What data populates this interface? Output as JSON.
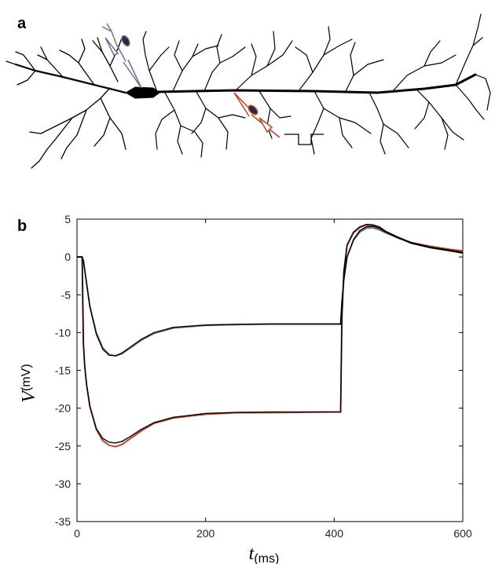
{
  "panels": {
    "a": {
      "letter": "a"
    },
    "b": {
      "letter": "b"
    }
  },
  "chart_data": {
    "type": "line",
    "xlabel": "t",
    "xlabel_unit": "(ms)",
    "ylabel": "V",
    "ylabel_unit": "(mV)",
    "xlim": [
      0,
      600
    ],
    "ylim": [
      -35,
      5
    ],
    "xticks": [
      0,
      200,
      400,
      600
    ],
    "yticks": [
      5,
      0,
      -5,
      -10,
      -15,
      -20,
      -25,
      -30,
      -35
    ],
    "grid": false,
    "colors": {
      "soma_recording": "#6b6f9a",
      "dendrite_recording": "#c0432a",
      "model_fit": "#000000"
    },
    "series": [
      {
        "color": "#6b6f9a",
        "x": [
          0,
          5,
          8,
          10,
          15,
          20,
          30,
          40,
          50,
          60,
          70,
          80,
          100,
          120,
          150,
          200,
          250,
          300,
          350,
          400,
          410,
          412,
          415,
          420,
          430,
          440,
          450,
          460,
          470,
          480,
          500,
          520,
          550,
          580,
          600
        ],
        "y": [
          0,
          0,
          0,
          -0.5,
          -3.5,
          -6.5,
          -10,
          -12,
          -12.9,
          -13.1,
          -12.8,
          -12.2,
          -11,
          -10.1,
          -9.4,
          -9.05,
          -8.95,
          -8.9,
          -8.9,
          -8.9,
          -8.9,
          -6,
          -3,
          0,
          2.2,
          3.3,
          3.8,
          3.85,
          3.6,
          3.2,
          2.5,
          1.9,
          1.3,
          0.9,
          0.7
        ]
      },
      {
        "color": "#c0432a",
        "x": [
          0,
          5,
          8,
          9,
          10,
          12,
          15,
          20,
          30,
          40,
          50,
          60,
          70,
          80,
          100,
          120,
          150,
          200,
          250,
          300,
          350,
          400,
          410,
          412,
          415,
          420,
          430,
          440,
          450,
          460,
          470,
          480,
          500,
          520,
          550,
          580,
          600
        ],
        "y": [
          0,
          0,
          0,
          -6,
          -11.5,
          -14.5,
          -17,
          -19.8,
          -22.8,
          -24.3,
          -24.9,
          -25.1,
          -24.8,
          -24.2,
          -23,
          -22,
          -21.3,
          -20.8,
          -20.6,
          -20.6,
          -20.55,
          -20.5,
          -20.5,
          -8,
          -2,
          1.5,
          3.2,
          3.9,
          4.25,
          4.2,
          3.9,
          3.3,
          2.5,
          1.9,
          1.4,
          1.0,
          0.8
        ]
      },
      {
        "color": "#000000",
        "x": [
          0,
          5,
          8,
          9,
          10,
          12,
          15,
          20,
          30,
          40,
          50,
          60,
          70,
          80,
          100,
          120,
          150,
          200,
          250,
          300,
          350,
          400,
          410,
          412,
          415,
          420,
          430,
          440,
          450,
          460,
          470,
          480,
          500,
          520,
          550,
          580,
          600
        ],
        "y": [
          0,
          0,
          0,
          -6,
          -11.5,
          -14.4,
          -16.9,
          -19.7,
          -22.7,
          -24,
          -24.5,
          -24.6,
          -24.4,
          -23.9,
          -22.8,
          -21.9,
          -21.2,
          -20.7,
          -20.55,
          -20.5,
          -20.5,
          -20.5,
          -20.5,
          -8,
          -2,
          1.6,
          3.3,
          4.0,
          4.3,
          4.25,
          4.0,
          3.4,
          2.6,
          1.9,
          1.3,
          0.9,
          0.6
        ]
      },
      {
        "color": "#000000",
        "x": [
          0,
          5,
          8,
          10,
          15,
          20,
          30,
          40,
          50,
          60,
          70,
          80,
          100,
          120,
          150,
          200,
          250,
          300,
          350,
          400,
          410,
          412,
          415,
          420,
          430,
          440,
          450,
          460,
          470,
          480,
          500,
          520,
          550,
          580,
          600
        ],
        "y": [
          0,
          0,
          0,
          -0.5,
          -3.6,
          -6.6,
          -10.2,
          -12.2,
          -13,
          -13.05,
          -12.7,
          -12.1,
          -10.9,
          -10,
          -9.3,
          -9,
          -8.9,
          -8.85,
          -8.85,
          -8.85,
          -8.85,
          -6,
          -3,
          0,
          2.3,
          3.5,
          4.0,
          4.05,
          3.8,
          3.3,
          2.5,
          1.8,
          1.2,
          0.8,
          0.5
        ]
      }
    ]
  }
}
